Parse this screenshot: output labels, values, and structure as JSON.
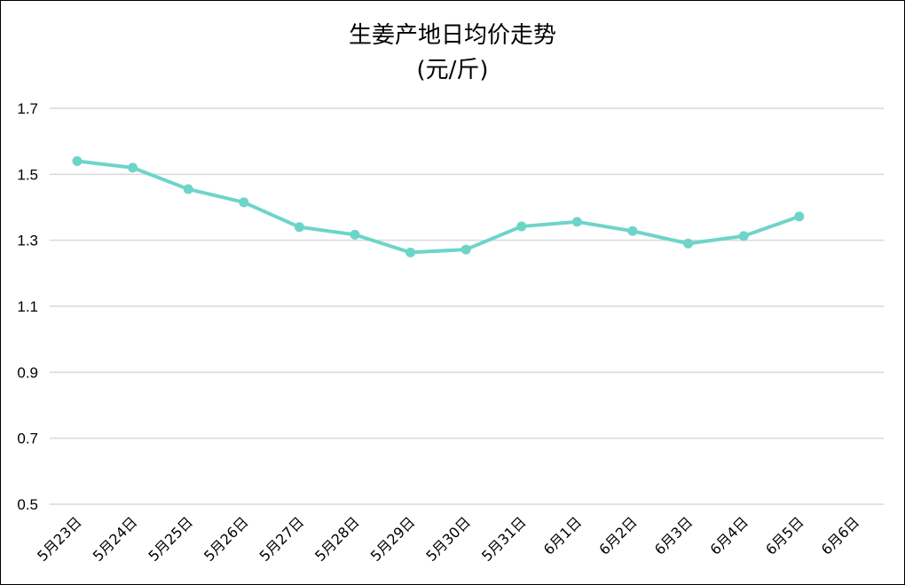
{
  "chart_data": {
    "type": "line",
    "title": "生姜产地日均价走势",
    "subtitle": "(元/斤)",
    "xlabel": "",
    "ylabel": "",
    "categories": [
      "5月23日",
      "5月24日",
      "5月25日",
      "5月26日",
      "5月27日",
      "5月28日",
      "5月29日",
      "5月30日",
      "5月31日",
      "6月1日",
      "6月2日",
      "6月3日",
      "6月4日",
      "6月5日",
      "6月6日"
    ],
    "series": [
      {
        "values": [
          1.54,
          1.52,
          1.455,
          1.415,
          1.34,
          1.317,
          1.263,
          1.272,
          1.342,
          1.356,
          1.328,
          1.29,
          1.313,
          1.372,
          null
        ],
        "color": "#6dd5c8"
      }
    ],
    "ylim": [
      0.5,
      1.7
    ],
    "yticks": [
      "0.5",
      "0.7",
      "0.9",
      "1.1",
      "1.3",
      "1.5",
      "1.7"
    ],
    "grid": true,
    "legend": "none",
    "grid_color": "#d9d9d9"
  }
}
